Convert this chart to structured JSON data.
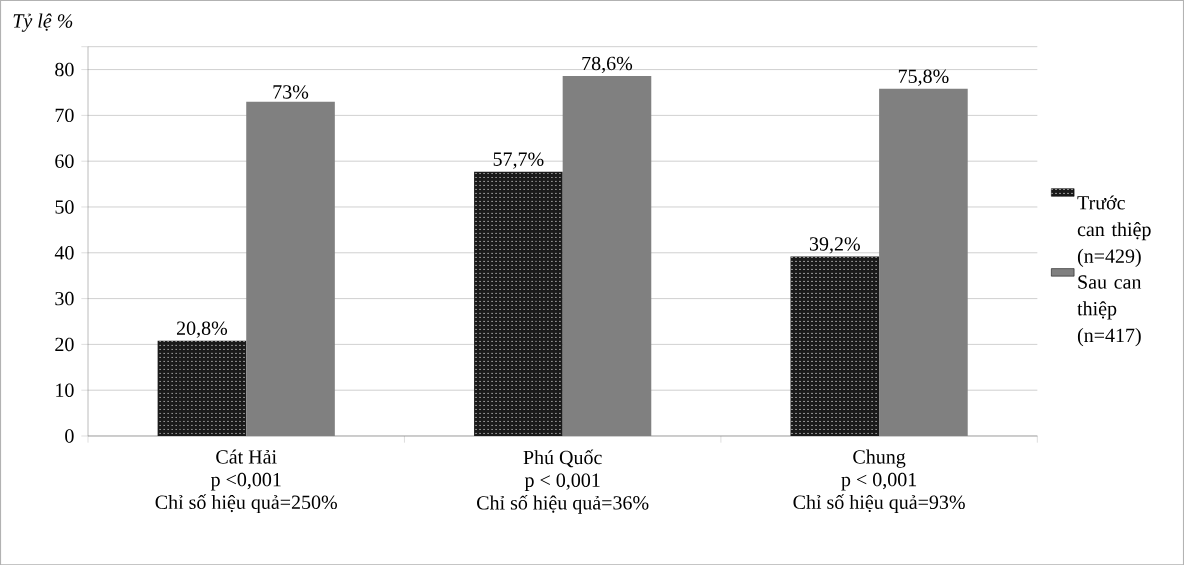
{
  "chart_data": {
    "type": "bar",
    "ylabel": "Tỷ lệ %",
    "categories": [
      "Cát Hải",
      "Phú Quốc",
      "Chung"
    ],
    "annotations": [
      "p <0,001",
      "Chỉ số hiệu quả=250%",
      "p < 0,001",
      "Chỉ số hiệu quả=36%",
      "p < 0,001",
      "Chỉ số hiệu quả=93%"
    ],
    "series": [
      {
        "name": "Trước can thiệp (n=429)",
        "color": "#1a1a1a",
        "values": [
          20.8,
          57.7,
          39.2
        ],
        "value_labels": [
          "20,8%",
          "57,7%",
          "39,2%"
        ]
      },
      {
        "name": "Sau can thiệp (n=417)",
        "color": "#808080",
        "values": [
          73,
          78.6,
          75.8
        ],
        "value_labels": [
          "73%",
          "78,6%",
          "75,8%"
        ]
      }
    ],
    "ylim": [
      0,
      85
    ],
    "yticks": [
      0,
      10,
      20,
      30,
      40,
      50,
      60,
      70,
      80,
      {
        "value": 85,
        "label": null
      }
    ],
    "grid": "y",
    "legend": "right"
  }
}
